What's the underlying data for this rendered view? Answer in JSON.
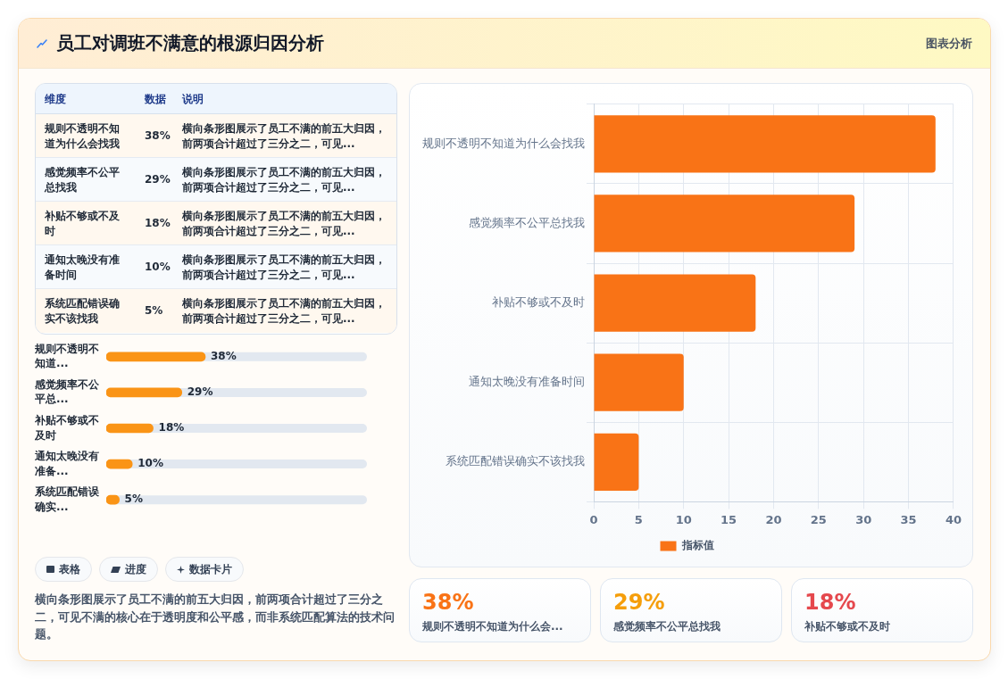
{
  "chart_data": [
    {
      "type": "bar",
      "title": "员工对调班不满意的根源归因分析",
      "orientation": "horizontal",
      "categories": [
        "规则不透明不知道为什么会找我",
        "感觉频率不公平总找我",
        "补贴不够或不及时",
        "通知太晚没有准备时间",
        "系统匹配错误确实不该找我"
      ],
      "series": [
        {
          "name": "指标值",
          "color": "#f97316",
          "values": [
            38,
            29,
            18,
            10,
            5
          ]
        }
      ],
      "xlim": [
        0,
        40
      ],
      "xticks": [
        0,
        5,
        10,
        15,
        20,
        25,
        30,
        35,
        40
      ],
      "grid": true,
      "legend": "bottom",
      "annotations": [
        "图表分析",
        "表格",
        "进度",
        "数据卡片",
        "横向条形图展示了员工不满的前五大归因，前两项合计超过了三分之二，可见不满的核心在于透明度和公平感，而非系统匹配算法的技术问题。"
      ]
    },
    {
      "type": "other",
      "annotations": [
        "维度",
        "数据",
        "说明",
        "规则不透明不知道为什么会找我",
        "38%",
        "横向条形图展示了员工不满的前五大归因，前两项合计超过了三分之二，可见...",
        "感觉频率不公平总找我",
        "29%",
        "横向条形图展示了员工不满的前五大归因，前两项合计超过了三分之二，可见...",
        "补贴不够或不及时",
        "18%",
        "横向条形图展示了员工不满的前五大归因，前两项合计超过了三分之二，可见...",
        "通知太晚没有准备时间",
        "10%",
        "横向条形图展示了员工不满的前五大归因，前两项合计超过了三分之二，可见...",
        "系统匹配错误确实不该找我",
        "5%",
        "横向条形图展示了员工不满的前五大归因，前两项合计超过了三分之二，可见..."
      ]
    },
    {
      "type": "bar",
      "orientation": "horizontal",
      "categories": [
        "规则不透明不知道...",
        "感觉频率不公平总...",
        "补贴不够或不及时",
        "通知太晚没有准备...",
        "系统匹配错误确实..."
      ],
      "values": [
        38,
        29,
        18,
        10,
        5
      ],
      "value_labels": [
        "38%",
        "29%",
        "18%",
        "10%",
        "5%"
      ],
      "color": "#fa9416",
      "tick_labels": "y"
    },
    {
      "type": "other",
      "annotations": [
        "38%",
        "规则不透明不知道为什么会...",
        "29%",
        "感觉频率不公平总找我",
        "18%",
        "补贴不够或不及时"
      ]
    }
  ]
}
